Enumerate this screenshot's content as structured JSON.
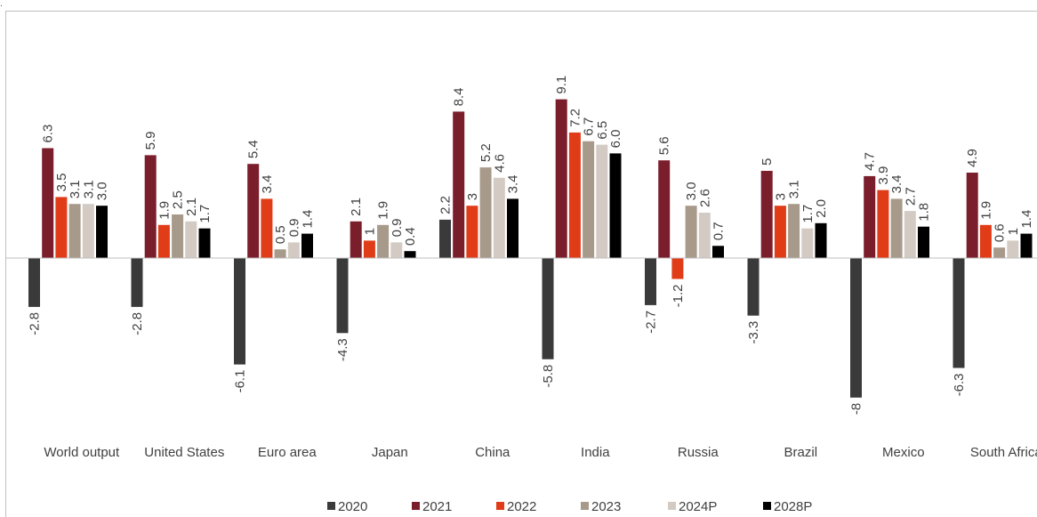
{
  "corner_mark": ".",
  "chart_data": {
    "type": "bar",
    "categories": [
      "World output",
      "United States",
      "Euro area",
      "Japan",
      "China",
      "India",
      "Russia",
      "Brazil",
      "Mexico",
      "South Africa"
    ],
    "series": [
      {
        "name": "2020",
        "color": "#3a3a3a",
        "values": [
          -2.8,
          -2.8,
          -6.1,
          -4.3,
          2.2,
          -5.8,
          -2.7,
          -3.3,
          -8,
          -6.3
        ],
        "labels": [
          "-2.8",
          "-2.8",
          "-6.1",
          "-4.3",
          "2.2",
          "-5.8",
          "-2.7",
          "-3.3",
          "-8",
          "-6.3"
        ]
      },
      {
        "name": "2021",
        "color": "#7b1e2b",
        "values": [
          6.3,
          5.9,
          5.4,
          2.1,
          8.4,
          9.1,
          5.6,
          5,
          4.7,
          4.9
        ],
        "labels": [
          "6.3",
          "5.9",
          "5.4",
          "2.1",
          "8.4",
          "9.1",
          "5.6",
          "5",
          "4.7",
          "4.9"
        ]
      },
      {
        "name": "2022",
        "color": "#e03c17",
        "values": [
          3.5,
          1.9,
          3.4,
          1,
          3,
          7.2,
          -1.2,
          3,
          3.9,
          1.9
        ],
        "labels": [
          "3.5",
          "1.9",
          "3.4",
          "1",
          "3",
          "7.2",
          "-1.2",
          "3",
          "3.9",
          "1.9"
        ]
      },
      {
        "name": "2023",
        "color": "#a89a8a",
        "values": [
          3.1,
          2.5,
          0.5,
          1.9,
          5.2,
          6.7,
          3.0,
          3.1,
          3.4,
          0.6
        ],
        "labels": [
          "3.1",
          "2.5",
          "0.5",
          "1.9",
          "5.2",
          "6.7",
          "3.0",
          "3.1",
          "3.4",
          "0.6"
        ]
      },
      {
        "name": "2024P",
        "color": "#d3cbc3",
        "values": [
          3.1,
          2.1,
          0.9,
          0.9,
          4.6,
          6.5,
          2.6,
          1.7,
          2.7,
          1
        ],
        "labels": [
          "3.1",
          "2.1",
          "0.9",
          "0.9",
          "4.6",
          "6.5",
          "2.6",
          "1.7",
          "2.7",
          "1"
        ]
      },
      {
        "name": "2028P",
        "color": "#000000",
        "values": [
          3.0,
          1.7,
          1.4,
          0.4,
          3.4,
          6.0,
          0.7,
          2.0,
          1.8,
          1.4
        ],
        "labels": [
          "3.0",
          "1.7",
          "1.4",
          "0.4",
          "3.4",
          "6.0",
          "0.7",
          "2.0",
          "1.8",
          "1.4"
        ]
      }
    ],
    "ylim": [
      -8,
      9.1
    ],
    "grid": false,
    "legend_position": "bottom"
  }
}
